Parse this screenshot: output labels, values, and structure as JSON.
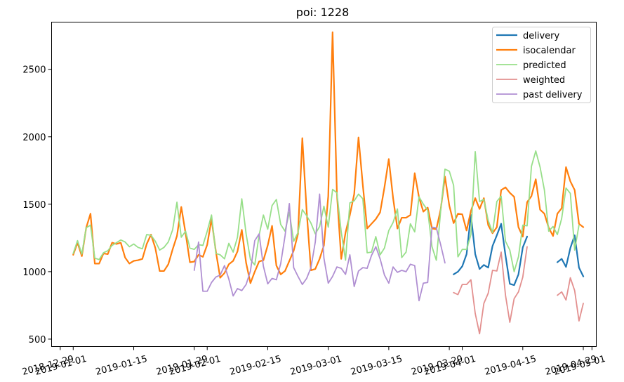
{
  "chart_data": {
    "type": "line",
    "title": "poi: 1228",
    "xlabel": "",
    "ylabel": "",
    "x_axis_type": "date",
    "xlim": [
      "2018-12-27",
      "2019-05-02"
    ],
    "ylim": [
      445,
      2850
    ],
    "x_ticks": [
      {
        "date": "2018-12-29",
        "label": "2018-12-29"
      },
      {
        "date": "2019-01-01",
        "label": "2019-01-01"
      },
      {
        "date": "2019-01-15",
        "label": "2019-01-15"
      },
      {
        "date": "2019-01-29",
        "label": "2019-01-29"
      },
      {
        "date": "2019-02-01",
        "label": "2019-02-01"
      },
      {
        "date": "2019-02-15",
        "label": "2019-02-15"
      },
      {
        "date": "2019-03-01",
        "label": "2019-03-01"
      },
      {
        "date": "2019-03-15",
        "label": "2019-03-15"
      },
      {
        "date": "2019-03-29",
        "label": "2019-03-29"
      },
      {
        "date": "2019-04-01",
        "label": "2019-04-01"
      },
      {
        "date": "2019-04-15",
        "label": "2019-04-15"
      },
      {
        "date": "2019-04-29",
        "label": "2019-04-29"
      },
      {
        "date": "2019-05-01",
        "label": "2019-05-01"
      }
    ],
    "y_ticks": [
      500,
      1000,
      1500,
      2000,
      2500
    ],
    "grid": false,
    "legend": "top-right",
    "series": [
      {
        "name": "delivery",
        "color": "#1f77b4",
        "segments": [
          {
            "start": "2019-03-30",
            "values": [
              980,
              1000,
              1040,
              1130,
              1420,
              1130,
              1020,
              1050,
              1030,
              1190,
              1270,
              1355,
              1120,
              910,
              900,
              980,
              1180,
              1260
            ]
          },
          {
            "start": "2019-04-23",
            "values": [
              1070,
              1095,
              1035,
              1175,
              1270,
              1030,
              965
            ]
          }
        ]
      },
      {
        "name": "isocalendar",
        "color": "#ff7f0e",
        "segments": [
          {
            "start": "2019-01-01",
            "values": [
              1125,
              1215,
              1115,
              1325,
              1430,
              1060,
              1060,
              1135,
              1130,
              1215,
              1205,
              1215,
              1105,
              1060,
              1080,
              1085,
              1095,
              1205,
              1275,
              1175,
              1005,
              1005,
              1055,
              1165,
              1265,
              1480,
              1285,
              1070,
              1075,
              1125,
              1110,
              1200,
              1390,
              1150,
              955,
              990,
              1055,
              1080,
              1150,
              1310,
              1065,
              915,
              1000,
              1075,
              1085,
              1195,
              1340,
              1045,
              980,
              1005,
              1080,
              1155,
              1280,
              1990,
              1450,
              1010,
              1020,
              1095,
              1195,
              1560,
              2775,
              1580,
              1095,
              1290,
              1420,
              1575,
              1995,
              1640,
              1320,
              1355,
              1390,
              1440,
              1625,
              1835,
              1545,
              1320,
              1400,
              1400,
              1420,
              1730,
              1550,
              1445,
              1475,
              1320,
              1315,
              1460,
              1705,
              1490,
              1360,
              1430,
              1425,
              1305,
              1450,
              1545,
              1465,
              1545,
              1345,
              1285,
              1330,
              1605,
              1625,
              1585,
              1555,
              1330,
              1260,
              1515,
              1560,
              1685,
              1460,
              1430,
              1325,
              1265,
              1430,
              1470,
              1775,
              1670,
              1605,
              1355,
              1330
            ]
          }
        ]
      },
      {
        "name": "predicted",
        "color": "#98df8a",
        "segments": [
          {
            "start": "2019-01-01",
            "values": [
              1135,
              1230,
              1130,
              1325,
              1345,
              1100,
              1090,
              1140,
              1155,
              1195,
              1215,
              1235,
              1220,
              1185,
              1205,
              1180,
              1170,
              1275,
              1270,
              1225,
              1160,
              1180,
              1220,
              1310,
              1515,
              1255,
              1300,
              1175,
              1165,
              1200,
              1195,
              1300,
              1420,
              1135,
              1125,
              1095,
              1210,
              1145,
              1255,
              1540,
              1280,
              1090,
              1050,
              1270,
              1420,
              1315,
              1490,
              1535,
              1350,
              1300,
              1440,
              1225,
              1290,
              1460,
              1415,
              1360,
              1280,
              1335,
              1485,
              1330,
              1610,
              1585,
              1295,
              1085,
              1510,
              1525,
              1575,
              1540,
              1140,
              1145,
              1260,
              1125,
              1175,
              1305,
              1365,
              1465,
              1105,
              1145,
              1355,
              1295,
              1555,
              1500,
              1455,
              1185,
              1085,
              1450,
              1760,
              1745,
              1640,
              1110,
              1165,
              1165,
              1275,
              1890,
              1520,
              1535,
              1380,
              1290,
              1520,
              1560,
              1225,
              1160,
              1000,
              1110,
              1345,
              1340,
              1780,
              1895,
              1775,
              1605,
              1300,
              1335,
              1275,
              1395,
              1620,
              1580,
              1160,
              1345
            ]
          }
        ]
      },
      {
        "name": "weighted",
        "color": "#e3908f",
        "segments": [
          {
            "start": "2019-03-30",
            "values": [
              845,
              830,
              905,
              905,
              940,
              690,
              540,
              765,
              840,
              1010,
              1005,
              1145,
              825,
              625,
              800,
              850,
              960,
              1185
            ]
          },
          {
            "start": "2019-04-23",
            "values": [
              825,
              850,
              790,
              955,
              860,
              635,
              765
            ]
          }
        ]
      },
      {
        "name": "past delivery",
        "color": "#b08fd2",
        "segments": [
          {
            "start": "2019-01-29",
            "values": [
              1010,
              1220,
              855,
              855,
              920,
              960,
              975,
              1045,
              945,
              820,
              875,
              860,
              905,
              1005,
              1230,
              1280,
              1040,
              910,
              950,
              940,
              1060,
              1265,
              1505,
              1030,
              965,
              905,
              950,
              1030,
              1220,
              1575,
              1100,
              915,
              965,
              1035,
              1025,
              980,
              1125,
              890,
              1005,
              1030,
              1025,
              1120,
              1185,
              1095,
              975,
              915,
              1035,
              995,
              1010,
              1000,
              1055,
              1045,
              785,
              915,
              920,
              1330,
              1325,
              1200,
              1065
            ]
          }
        ]
      }
    ]
  }
}
